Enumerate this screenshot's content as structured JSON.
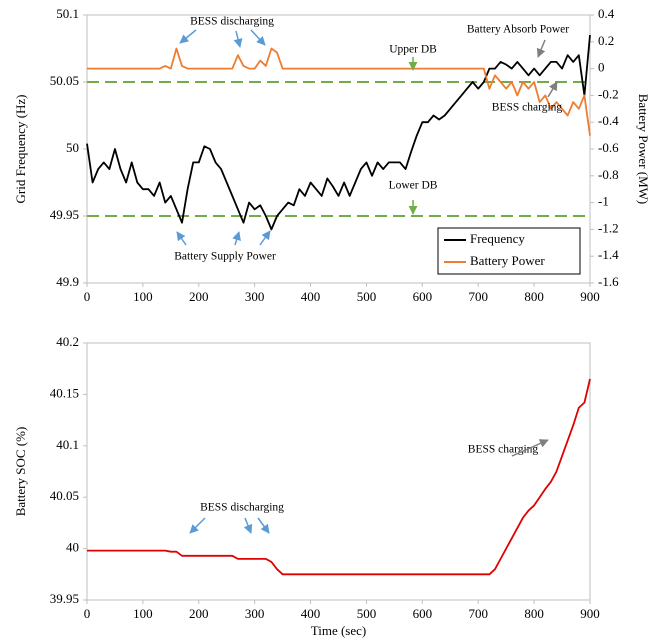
{
  "chart_data": [
    {
      "type": "line",
      "y_label": "Grid Frequency (Hz)",
      "y2_label": "Battery Power (MW)",
      "x": [
        0,
        10,
        20,
        30,
        40,
        50,
        60,
        70,
        80,
        90,
        100,
        110,
        120,
        130,
        140,
        150,
        160,
        170,
        180,
        190,
        200,
        210,
        220,
        230,
        240,
        250,
        260,
        270,
        280,
        290,
        300,
        310,
        320,
        330,
        340,
        350,
        360,
        370,
        380,
        390,
        400,
        410,
        420,
        430,
        440,
        450,
        460,
        470,
        480,
        490,
        500,
        510,
        520,
        530,
        540,
        550,
        560,
        570,
        580,
        590,
        600,
        610,
        620,
        630,
        640,
        650,
        660,
        670,
        680,
        690,
        700,
        710,
        720,
        730,
        740,
        750,
        760,
        770,
        780,
        790,
        800,
        810,
        820,
        830,
        840,
        850,
        860,
        870,
        880,
        890,
        900
      ],
      "series": [
        {
          "name": "Frequency",
          "color": "#000000",
          "values": [
            50.004,
            49.975,
            49.985,
            49.99,
            49.985,
            50.0,
            49.985,
            49.975,
            49.99,
            49.975,
            49.97,
            49.97,
            49.965,
            49.975,
            49.96,
            49.965,
            49.955,
            49.945,
            49.97,
            49.99,
            49.99,
            50.002,
            50.0,
            49.99,
            49.985,
            49.975,
            49.965,
            49.955,
            49.945,
            49.96,
            49.955,
            49.958,
            49.95,
            49.94,
            49.95,
            49.955,
            49.96,
            49.958,
            49.97,
            49.965,
            49.975,
            49.97,
            49.965,
            49.978,
            49.972,
            49.965,
            49.975,
            49.965,
            49.975,
            49.985,
            49.99,
            49.98,
            49.99,
            49.985,
            49.99,
            49.99,
            49.99,
            49.985,
            49.998,
            50.01,
            50.02,
            50.02,
            50.025,
            50.022,
            50.025,
            50.03,
            50.035,
            50.04,
            50.045,
            50.05,
            50.045,
            50.05,
            50.06,
            50.06,
            50.065,
            50.063,
            50.06,
            50.065,
            50.06,
            50.055,
            50.06,
            50.055,
            50.06,
            50.065,
            50.065,
            50.06,
            50.07,
            50.065,
            50.07,
            50.04,
            50.085
          ]
        },
        {
          "name": "Battery Power",
          "color": "#ed7d31",
          "axis": "y2",
          "values": [
            0,
            0,
            0,
            0,
            0,
            0,
            0,
            0,
            0,
            0,
            0,
            0,
            0,
            0,
            0.02,
            0,
            0.15,
            0.02,
            0,
            0,
            0,
            0,
            0,
            0,
            0,
            0,
            0,
            0.1,
            0.02,
            0,
            0,
            0.06,
            0.02,
            0.15,
            0.12,
            0,
            0,
            0,
            0,
            0,
            0,
            0,
            0,
            0,
            0,
            0,
            0,
            0,
            0,
            0,
            0,
            0,
            0,
            0,
            0,
            0,
            0,
            0,
            0,
            0,
            0,
            0,
            0,
            0,
            0,
            0,
            0,
            0,
            0,
            0,
            0,
            0,
            -0.15,
            -0.05,
            -0.1,
            -0.15,
            -0.1,
            -0.2,
            -0.1,
            -0.15,
            -0.1,
            -0.25,
            -0.2,
            -0.3,
            -0.25,
            -0.3,
            -0.35,
            -0.25,
            -0.3,
            -0.2,
            -0.5
          ]
        }
      ],
      "xlim": [
        0,
        900
      ],
      "xticks": [
        0,
        100,
        200,
        300,
        400,
        500,
        600,
        700,
        800,
        900
      ],
      "ylim": [
        49.9,
        50.1
      ],
      "yticks": [
        49.9,
        49.95,
        50,
        50.05,
        50.1
      ],
      "y2lim": [
        -1.6,
        0.4
      ],
      "y2ticks": [
        -1.6,
        -1.4,
        -1.2,
        -1,
        -0.8,
        -0.6,
        -0.4,
        -0.2,
        0,
        0.2,
        0.4
      ],
      "grid": false,
      "legend": "lower right",
      "reference_lines": [
        {
          "label": "Upper DB",
          "value": 50.05,
          "color": "#70ad47"
        },
        {
          "label": "Lower DB",
          "value": 49.95,
          "color": "#70ad47"
        }
      ],
      "annotations": [
        {
          "text": "BESS discharging",
          "color": "#5b9bd5"
        },
        {
          "text": "Battery Absorb Power",
          "color": "#7f7f7f"
        },
        {
          "text": "BESS charging",
          "color": "#7f7f7f"
        },
        {
          "text": "Battery Supply Power",
          "color": "#5b9bd5"
        }
      ]
    },
    {
      "type": "line",
      "y_label": "Battery SOC (%)",
      "x_label": "Time (sec)",
      "x": [
        0,
        10,
        20,
        30,
        40,
        50,
        60,
        70,
        80,
        90,
        100,
        110,
        120,
        130,
        140,
        150,
        160,
        170,
        180,
        190,
        200,
        210,
        220,
        230,
        240,
        250,
        260,
        270,
        280,
        290,
        300,
        310,
        320,
        330,
        340,
        350,
        360,
        370,
        380,
        390,
        400,
        410,
        420,
        430,
        440,
        450,
        460,
        470,
        480,
        490,
        500,
        510,
        520,
        530,
        540,
        550,
        560,
        570,
        580,
        590,
        600,
        610,
        620,
        630,
        640,
        650,
        660,
        670,
        680,
        690,
        700,
        710,
        720,
        730,
        740,
        750,
        760,
        770,
        780,
        790,
        800,
        810,
        820,
        830,
        840,
        850,
        860,
        870,
        880,
        890,
        900
      ],
      "series": [
        {
          "name": "Battery SOC",
          "color": "#e00000",
          "values": [
            39.998,
            39.998,
            39.998,
            39.998,
            39.998,
            39.998,
            39.998,
            39.998,
            39.998,
            39.998,
            39.998,
            39.998,
            39.998,
            39.998,
            39.998,
            39.997,
            39.997,
            39.993,
            39.993,
            39.993,
            39.993,
            39.993,
            39.993,
            39.993,
            39.993,
            39.993,
            39.993,
            39.99,
            39.99,
            39.99,
            39.99,
            39.99,
            39.99,
            39.987,
            39.98,
            39.975,
            39.975,
            39.975,
            39.975,
            39.975,
            39.975,
            39.975,
            39.975,
            39.975,
            39.975,
            39.975,
            39.975,
            39.975,
            39.975,
            39.975,
            39.975,
            39.975,
            39.975,
            39.975,
            39.975,
            39.975,
            39.975,
            39.975,
            39.975,
            39.975,
            39.975,
            39.975,
            39.975,
            39.975,
            39.975,
            39.975,
            39.975,
            39.975,
            39.975,
            39.975,
            39.975,
            39.975,
            39.975,
            39.98,
            39.99,
            40.0,
            40.01,
            40.02,
            40.03,
            40.037,
            40.042,
            40.05,
            40.058,
            40.065,
            40.075,
            40.09,
            40.105,
            40.12,
            40.137,
            40.142,
            40.165
          ]
        }
      ],
      "xlim": [
        0,
        900
      ],
      "xticks": [
        0,
        100,
        200,
        300,
        400,
        500,
        600,
        700,
        800,
        900
      ],
      "ylim": [
        39.95,
        40.2
      ],
      "yticks": [
        39.95,
        40,
        40.05,
        40.1,
        40.15,
        40.2
      ],
      "grid": false,
      "annotations": [
        {
          "text": "BESS charging",
          "color": "#7f7f7f"
        },
        {
          "text": "BESS discharging",
          "color": "#5b9bd5"
        }
      ]
    }
  ]
}
